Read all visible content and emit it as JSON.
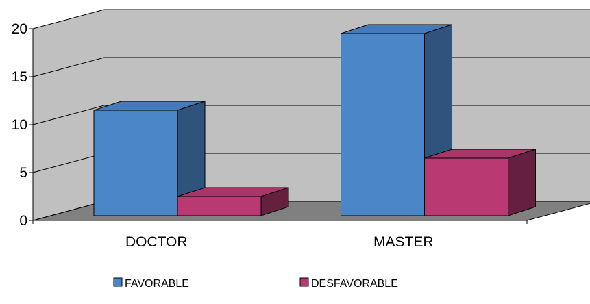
{
  "chart_data": {
    "type": "bar",
    "style": "3d-clustered-column",
    "title": "",
    "xlabel": "",
    "ylabel": "",
    "categories": [
      "DOCTOR",
      "MASTER"
    ],
    "series": [
      {
        "name": "FAVORABLE",
        "values": [
          11,
          19
        ],
        "color": "#4A86C8"
      },
      {
        "name": "DESFAVORABLE",
        "values": [
          2,
          6
        ],
        "color": "#B93A72"
      }
    ],
    "ylim": [
      0,
      20
    ],
    "yticks": [
      0,
      5,
      10,
      15,
      20
    ],
    "grid": true,
    "legend": "bottom",
    "colors": {
      "wall": "#C0C0C0",
      "floor": "#808080",
      "gridline": "#000000"
    }
  }
}
